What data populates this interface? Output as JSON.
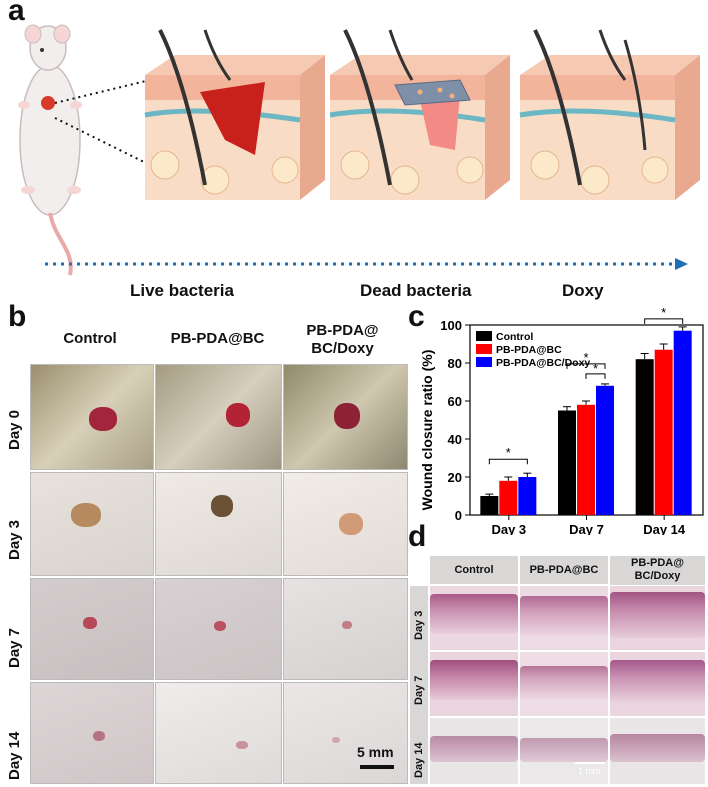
{
  "panel_a": {
    "letter": "a",
    "legend": {
      "live_bacteria": "Live bacteria",
      "dead_bacteria": "Dead bacteria",
      "doxy": "Doxy"
    },
    "colors": {
      "live": "#7fd46a",
      "dead": "#6b6b6b",
      "doxy": "#f5b07a",
      "arrow": "#1f6fb5"
    }
  },
  "panel_b": {
    "letter": "b",
    "columns": [
      "Control",
      "PB-PDA@BC",
      "PB-PDA@\nBC/Doxy"
    ],
    "rows": [
      "Day 0",
      "Day 3",
      "Day 7",
      "Day 14"
    ],
    "scale_bar": "5 mm"
  },
  "panel_c": {
    "letter": "c"
  },
  "panel_d": {
    "letter": "d",
    "columns": [
      "Control",
      "PB-PDA@BC",
      "PB-PDA@\nBC/Doxy"
    ],
    "rows": [
      "Day 3",
      "Day 7",
      "Day 14"
    ],
    "scale_bar": "1 mm"
  },
  "chart_data": {
    "type": "bar",
    "ylabel": "Wound closure ratio (%)",
    "categories": [
      "Day 3",
      "Day 7",
      "Day 14"
    ],
    "ylim": [
      0,
      100
    ],
    "yticks": [
      0,
      20,
      40,
      60,
      80,
      100
    ],
    "legend_position": "top-left",
    "series": [
      {
        "name": "Control",
        "color": "#000000",
        "values": [
          10,
          55,
          82
        ],
        "errors": [
          1,
          2,
          3
        ]
      },
      {
        "name": "PB-PDA@BC",
        "color": "#ff0000",
        "values": [
          18,
          58,
          87
        ],
        "errors": [
          2,
          2,
          3
        ]
      },
      {
        "name": "PB-PDA@BC/Doxy",
        "color": "#0000ff",
        "values": [
          20,
          68,
          97
        ],
        "errors": [
          2,
          1,
          2
        ]
      }
    ],
    "significance": [
      {
        "group": "Day 3",
        "mark": "*"
      },
      {
        "group": "Day 7",
        "mark": "*"
      },
      {
        "group": "Day 7",
        "mark": "*"
      },
      {
        "group": "Day 14",
        "mark": "*"
      }
    ]
  }
}
